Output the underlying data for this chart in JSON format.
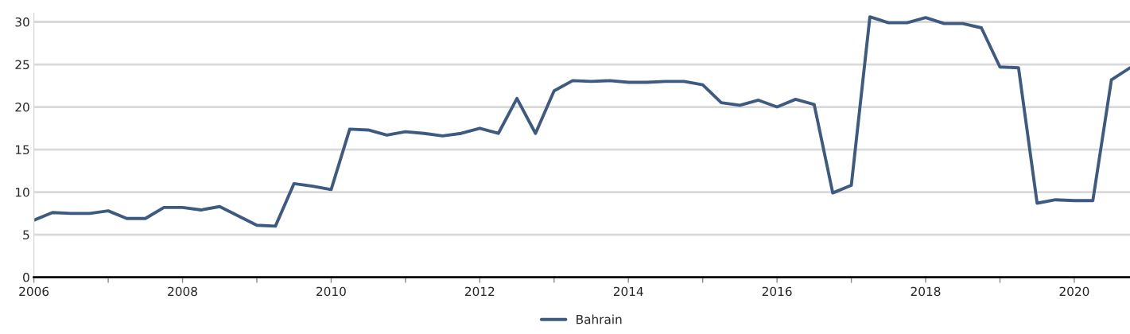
{
  "chart_data": {
    "type": "line",
    "x": [
      2006,
      2006.25,
      2006.5,
      2006.75,
      2007,
      2007.25,
      2007.5,
      2007.75,
      2008,
      2008.25,
      2008.5,
      2008.75,
      2009,
      2009.25,
      2009.5,
      2009.75,
      2010,
      2010.25,
      2010.5,
      2010.75,
      2011,
      2011.25,
      2011.5,
      2011.75,
      2012,
      2012.25,
      2012.5,
      2012.75,
      2013,
      2013.25,
      2013.5,
      2013.75,
      2014,
      2014.25,
      2014.5,
      2014.75,
      2015,
      2015.25,
      2015.5,
      2015.75,
      2016,
      2016.25,
      2016.5,
      2016.75,
      2017,
      2017.25,
      2017.5,
      2017.75,
      2018,
      2018.25,
      2018.5,
      2018.75,
      2019,
      2019.25,
      2019.5,
      2019.75,
      2020,
      2020.25,
      2020.5,
      2020.75
    ],
    "series": [
      {
        "name": "Bahrain",
        "color": "#3d5a80",
        "values": [
          6.7,
          7.6,
          7.5,
          7.5,
          7.8,
          6.9,
          6.9,
          8.2,
          8.2,
          7.9,
          8.3,
          7.2,
          6.1,
          6.0,
          11.0,
          10.7,
          10.3,
          17.4,
          17.3,
          16.7,
          17.1,
          16.9,
          16.6,
          16.9,
          17.5,
          16.9,
          21.0,
          16.9,
          21.9,
          23.1,
          23.0,
          23.1,
          22.9,
          22.9,
          23.0,
          23.0,
          22.6,
          20.5,
          20.2,
          20.8,
          20.0,
          20.9,
          20.3,
          9.9,
          10.8,
          30.6,
          29.9,
          29.9,
          30.5,
          29.8,
          29.8,
          29.3,
          24.7,
          24.6,
          8.7,
          9.1,
          9.0,
          9.0,
          23.2,
          24.6
        ]
      }
    ],
    "xlim": [
      2006,
      2020.75
    ],
    "xticks": [
      2006,
      {
        "value": 2007,
        "label": null
      },
      2008,
      {
        "value": 2009,
        "label": null
      },
      2010,
      {
        "value": 2011,
        "label": null
      },
      2012,
      {
        "value": 2013,
        "label": null
      },
      2014,
      {
        "value": 2015,
        "label": null
      },
      2016,
      {
        "value": 2017,
        "label": null
      },
      2018,
      {
        "value": 2019,
        "label": null
      },
      2020
    ],
    "ylim": [
      0,
      31
    ],
    "yticks": [
      0,
      5,
      10,
      15,
      20,
      25,
      30
    ],
    "grid": "y",
    "legend": "bottom",
    "line_style": "solid",
    "marker": "none"
  }
}
